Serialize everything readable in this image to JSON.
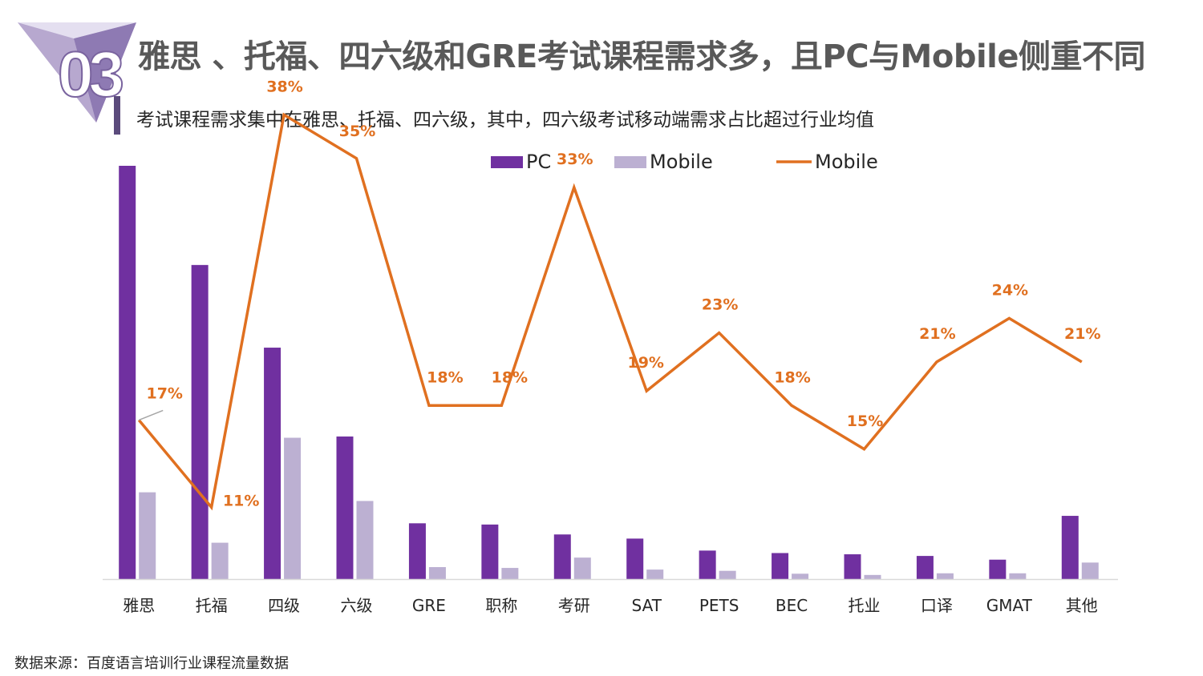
{
  "header": {
    "badge_number": "03",
    "title": "雅思 、托福、四六级和GRE考试课程需求多，且PC与Mobile侧重不同",
    "subtitle": "考试课程需求集中在雅思、托福、四六级，其中，四六级考试移动端需求占比超过行业均值"
  },
  "footer": {
    "source": "数据来源：百度语言培训行业课程流量数据"
  },
  "colors": {
    "pc": "#7030a0",
    "mobile_bar": "#bcb0d2",
    "mobile_line": "#e07020",
    "label": "#e07020",
    "badge_light": "#d9d2e6",
    "badge_mid": "#b7a8cf",
    "badge_dark": "#8e7ab3"
  },
  "chart_data": {
    "type": "bar",
    "categories": [
      "雅思",
      "托福",
      "四级",
      "六级",
      "GRE",
      "职称",
      "考研",
      "SAT",
      "PETS",
      "BEC",
      "托业",
      "口译",
      "GMAT",
      "其他"
    ],
    "series": [
      {
        "name": "PC",
        "kind": "bar",
        "values": [
          100,
          76,
          56,
          34.5,
          13.5,
          13.2,
          10.8,
          9.8,
          6.9,
          6.3,
          6.0,
          5.6,
          4.7,
          15.3
        ]
      },
      {
        "name": "Mobile",
        "kind": "bar",
        "values": [
          21,
          8.8,
          34.2,
          18.9,
          2.9,
          2.7,
          5.2,
          2.3,
          2.0,
          1.3,
          1.0,
          1.4,
          1.4,
          4.0
        ]
      },
      {
        "name": "Mobile",
        "kind": "line",
        "axis": "secondary",
        "values": [
          17,
          11,
          38,
          35,
          18,
          18,
          33,
          19,
          23,
          18,
          15,
          21,
          24,
          21
        ],
        "labels": [
          "17%",
          "11%",
          "38%",
          "35%",
          "18%",
          "18%",
          "33%",
          "19%",
          "23%",
          "18%",
          "15%",
          "21%",
          "24%",
          "21%"
        ]
      }
    ],
    "y_range": [
      0,
      100
    ],
    "y2_range": [
      0,
      40
    ],
    "legend": [
      "PC",
      "Mobile",
      "Mobile"
    ],
    "legend_position": "top-center",
    "grid": false
  }
}
